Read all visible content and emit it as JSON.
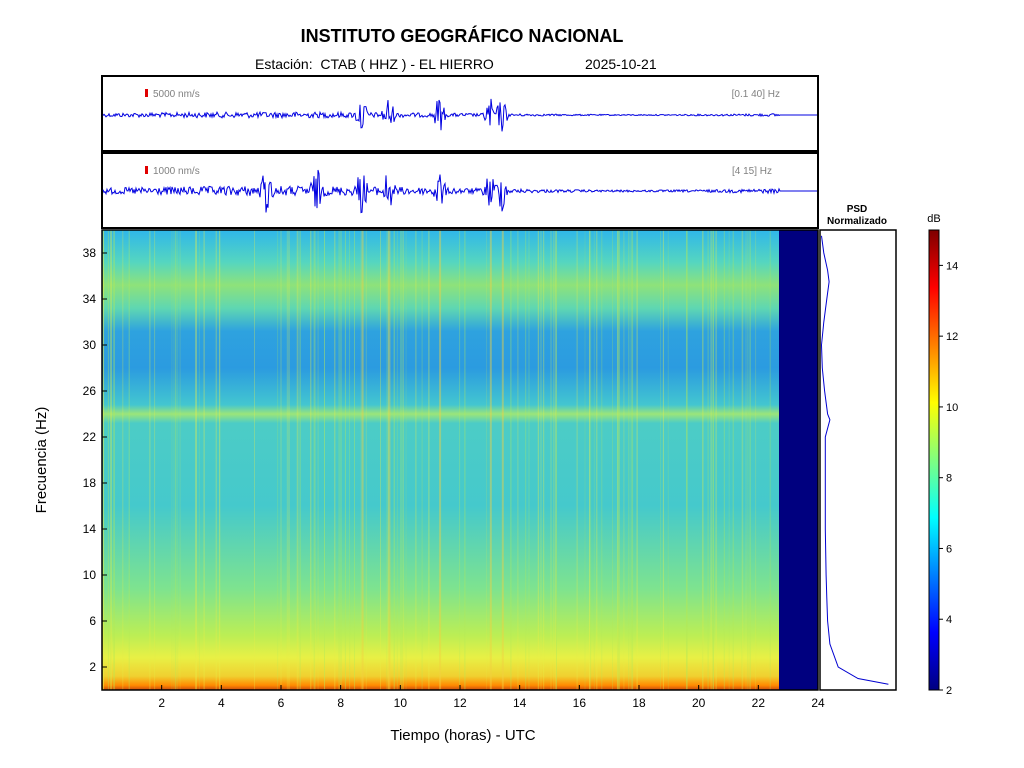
{
  "header": {
    "title": "INSTITUTO GEOGRÁFICO NACIONAL",
    "station_line": "Estación:  CTAB ( HHZ ) - EL HIERRO",
    "date": "2025-10-21"
  },
  "chart_data": [
    {
      "type": "line",
      "name": "seismogram-broadband",
      "scale_label": "5000 nm/s",
      "filter_label": "[0.1 40] Hz",
      "xlim": [
        0,
        24
      ],
      "data_end_hour": 22.7,
      "events_hours": [
        8.7,
        9.6,
        11.3,
        13.0,
        13.4
      ]
    },
    {
      "type": "line",
      "name": "seismogram-filtered",
      "scale_label": "1000 nm/s",
      "filter_label": "[4 15] Hz",
      "xlim": [
        0,
        24
      ],
      "data_end_hour": 22.7,
      "events_hours": [
        5.5,
        7.2,
        8.7,
        9.6,
        11.3,
        13.0,
        13.4
      ]
    },
    {
      "type": "heatmap",
      "name": "spectrogram",
      "xlabel": "Tiempo (horas) - UTC",
      "ylabel": "Frecuencia  (Hz)",
      "xlim": [
        0,
        24
      ],
      "ylim": [
        0,
        40
      ],
      "x_ticks": [
        "2",
        "4",
        "6",
        "8",
        "10",
        "12",
        "14",
        "16",
        "18",
        "20",
        "22",
        "24"
      ],
      "y_ticks": [
        "2",
        "6",
        "10",
        "14",
        "18",
        "22",
        "26",
        "30",
        "34",
        "38"
      ],
      "data_end_hour": 22.7,
      "colorbar": {
        "label": "dB",
        "range": [
          2,
          15
        ],
        "ticks": [
          "2",
          "4",
          "6",
          "8",
          "10",
          "12",
          "14"
        ]
      }
    },
    {
      "type": "line",
      "name": "psd",
      "title_line1": "PSD",
      "title_line2": "Normalizado",
      "frequency_hz": [
        0.5,
        1,
        2,
        4,
        6,
        8,
        10,
        14,
        18,
        22,
        23.5,
        24,
        26,
        28,
        30,
        32,
        34,
        35.5,
        36.5,
        38,
        39.5
      ],
      "normalized_power": [
        0.9,
        0.5,
        0.24,
        0.13,
        0.1,
        0.09,
        0.08,
        0.07,
        0.07,
        0.07,
        0.13,
        0.1,
        0.06,
        0.03,
        0.02,
        0.05,
        0.09,
        0.12,
        0.1,
        0.05,
        0.02
      ]
    }
  ]
}
